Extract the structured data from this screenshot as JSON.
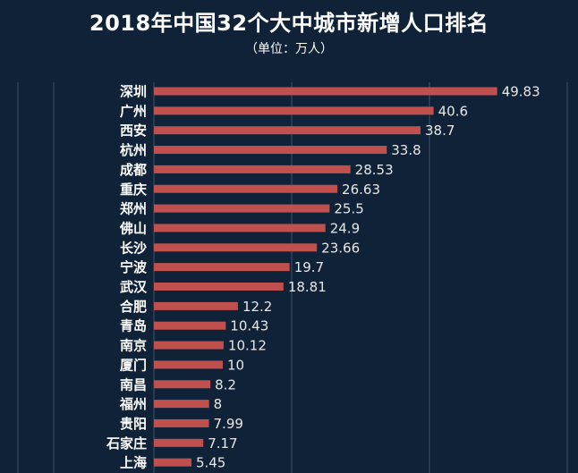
{
  "title": "2018年中国32个大中城市新增人口排名",
  "subtitle": "（单位：万人）",
  "colors": {
    "background": "#0f2238",
    "bar": "#c0504d",
    "gridline": "#3e5168",
    "text": "#ffffff"
  },
  "chart_data": {
    "type": "bar",
    "orientation": "horizontal",
    "title": "2018年中国32个大中城市新增人口排名",
    "subtitle": "（单位：万人）",
    "unit": "万人",
    "categories": [
      "深圳",
      "广州",
      "西安",
      "杭州",
      "成都",
      "重庆",
      "郑州",
      "佛山",
      "长沙",
      "宁波",
      "武汉",
      "合肥",
      "青岛",
      "南京",
      "厦门",
      "南昌",
      "福州",
      "贵阳",
      "石家庄",
      "上海"
    ],
    "values": [
      49.83,
      40.6,
      38.7,
      33.8,
      28.53,
      26.63,
      25.5,
      24.9,
      23.66,
      19.7,
      18.81,
      12.2,
      10.43,
      10.12,
      10,
      8.2,
      8,
      7.99,
      7.17,
      5.45
    ],
    "value_labels": [
      "49.83",
      "40.6",
      "38.7",
      "33.8",
      "28.53",
      "26.63",
      "25.5",
      "24.9",
      "23.66",
      "19.7",
      "18.81",
      "12.2",
      "10.43",
      "10.12",
      "10",
      "8.2",
      "8",
      "7.99",
      "7.17",
      "5.45"
    ],
    "xlim": [
      0,
      55
    ],
    "grid": true,
    "legend": "none"
  }
}
